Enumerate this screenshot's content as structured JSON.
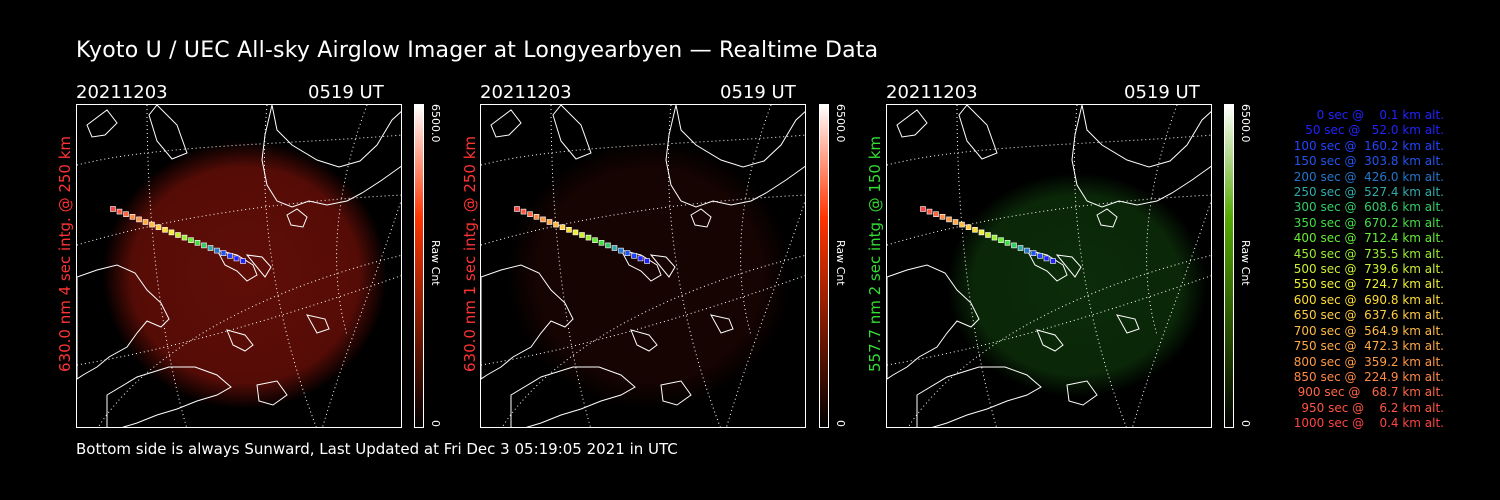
{
  "title": "Kyoto U / UEC All-sky Airglow Imager at Longyearbyen — Realtime Data",
  "footer": "Bottom side is always Sunward, Last Updated at Fri Dec  3 05:19:05 2021 in UTC",
  "colors": {
    "background": "#000000",
    "red_channel": "#ff3333",
    "green_channel": "#33dd33"
  },
  "panels": [
    {
      "date": "20211203",
      "time": "0519 UT",
      "side_label": "630.0 nm 4 sec intg. @ 250 km",
      "side_label_color": "#ff3333",
      "cbar_max": "6500.0",
      "cbar_min": "0",
      "cbar_unit": "Raw Cnt",
      "cbar_color": "#ff3300",
      "glow": "#6a0f08",
      "glow_strength": 0.9
    },
    {
      "date": "20211203",
      "time": "0519 UT",
      "side_label": "630.0 nm 1 sec intg. @ 250 km",
      "side_label_color": "#ff3333",
      "cbar_max": "6500.0",
      "cbar_min": "0",
      "cbar_unit": "Raw Cnt",
      "cbar_color": "#ff3300",
      "glow": "#2a0704",
      "glow_strength": 0.55
    },
    {
      "date": "20211203",
      "time": "0519 UT",
      "side_label": "557.7 nm 2 sec intg. @ 150 km",
      "side_label_color": "#33dd33",
      "cbar_max": "6500.0",
      "cbar_min": "0",
      "cbar_unit": "Raw Cnt",
      "cbar_color": "#55aa00",
      "glow": "#0f3a0c",
      "glow_strength": 0.75
    }
  ],
  "legend": [
    {
      "text": "   0 sec @    0.1 km alt.",
      "color": "#2222ff"
    },
    {
      "text": "  50 sec @   52.0 km alt.",
      "color": "#2222ff"
    },
    {
      "text": " 100 sec @  160.2 km alt.",
      "color": "#2244ff"
    },
    {
      "text": " 150 sec @  303.8 km alt.",
      "color": "#2255ee"
    },
    {
      "text": " 200 sec @  426.0 km alt.",
      "color": "#2277cc"
    },
    {
      "text": " 250 sec @  527.4 km alt.",
      "color": "#33aaaa"
    },
    {
      "text": " 300 sec @  608.6 km alt.",
      "color": "#33cc66"
    },
    {
      "text": " 350 sec @  670.2 km alt.",
      "color": "#44dd44"
    },
    {
      "text": " 400 sec @  712.4 km alt.",
      "color": "#66ee33"
    },
    {
      "text": " 450 sec @  735.5 km alt.",
      "color": "#99ee33"
    },
    {
      "text": " 500 sec @  739.6 km alt.",
      "color": "#ccee33"
    },
    {
      "text": " 550 sec @  724.7 km alt.",
      "color": "#eeee33"
    },
    {
      "text": " 600 sec @  690.8 km alt.",
      "color": "#ffdd33"
    },
    {
      "text": " 650 sec @  637.6 km alt.",
      "color": "#ffcc44"
    },
    {
      "text": " 700 sec @  564.9 km alt.",
      "color": "#ffbb44"
    },
    {
      "text": " 750 sec @  472.3 km alt.",
      "color": "#ffaa44"
    },
    {
      "text": " 800 sec @  359.2 km alt.",
      "color": "#ff9944"
    },
    {
      "text": " 850 sec @  224.9 km alt.",
      "color": "#ff8844"
    },
    {
      "text": " 900 sec @   68.7 km alt.",
      "color": "#ff6644"
    },
    {
      "text": " 950 sec @    6.2 km alt.",
      "color": "#ff5544"
    },
    {
      "text": "1000 sec @    0.4 km alt.",
      "color": "#ff4444"
    }
  ]
}
